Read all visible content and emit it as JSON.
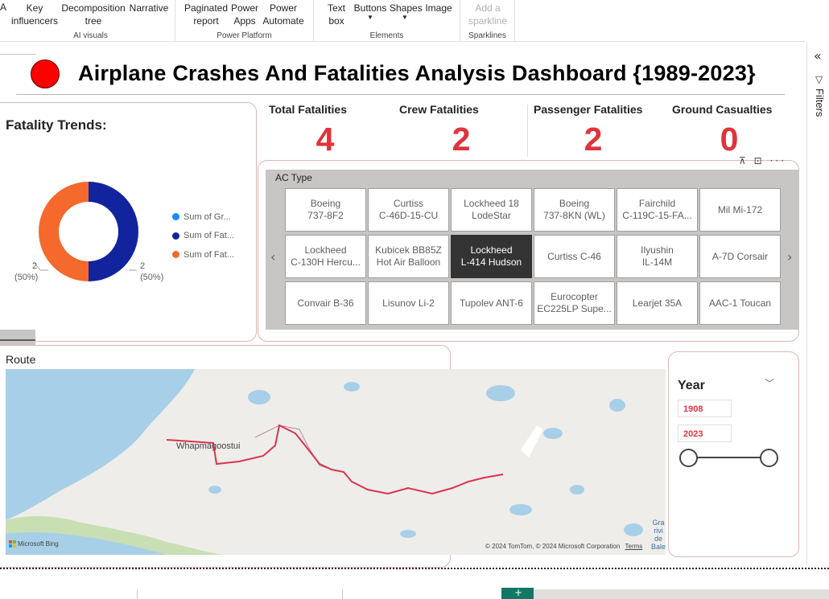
{
  "ribbon": {
    "ai_visuals": {
      "label": "AI visuals",
      "buttons": [
        {
          "line1": "Key",
          "line2": "influencers"
        },
        {
          "line1": "Decomposition",
          "line2": "tree"
        },
        {
          "line1": "Narrative",
          "line2": ""
        }
      ]
    },
    "power_platform": {
      "label": "Power Platform",
      "buttons": [
        {
          "line1": "Paginated",
          "line2": "report"
        },
        {
          "line1": "Power",
          "line2": "Apps"
        },
        {
          "line1": "Power",
          "line2": "Automate"
        }
      ]
    },
    "elements": {
      "label": "Elements",
      "buttons": [
        {
          "line1": "Text",
          "line2": "box"
        },
        {
          "line1": "Buttons",
          "line2": ""
        },
        {
          "line1": "Shapes",
          "line2": ""
        },
        {
          "line1": "Image",
          "line2": ""
        }
      ]
    },
    "sparklines": {
      "label": "Sparklines",
      "buttons": [
        {
          "line1": "Add a",
          "line2": "sparkline"
        }
      ]
    },
    "left_fragment": "A"
  },
  "filters": {
    "label": "Filters",
    "collapse_icon": "double-chevron-left-icon",
    "funnel_icon": "funnel-icon"
  },
  "title": {
    "text": "Airplane Crashes And Fatalities Analysis Dashboard {1989-2023}",
    "dot_color": "#ff0000"
  },
  "trends": {
    "title": "Fatality Trends:",
    "legend": [
      {
        "label": "Sum of Gr...",
        "color": "#118dff"
      },
      {
        "label": "Sum of Fat...",
        "color": "#12239e"
      },
      {
        "label": "Sum of Fat...",
        "color": "#f5692d"
      }
    ],
    "left_label_value": "2",
    "left_label_pct": "(50%)",
    "right_label_value": "2",
    "right_label_pct": "(50%)"
  },
  "chart_data": {
    "type": "pie",
    "title": "Fatality Trends:",
    "categories": [
      "Sum of Gr...",
      "Sum of Fat...",
      "Sum of Fat..."
    ],
    "values": [
      0,
      2,
      2
    ],
    "percentages": [
      0,
      50,
      50
    ],
    "colors": [
      "#118dff",
      "#12239e",
      "#f5692d"
    ],
    "donut": true,
    "legend_position": "right"
  },
  "kpis": {
    "total": {
      "label": "Total Fatalities",
      "value": "4"
    },
    "crew": {
      "label": "Crew Fatalities",
      "value": "2"
    },
    "passenger": {
      "label": "Passenger Fatalities",
      "value": "2"
    },
    "ground": {
      "label": "Ground Casualties",
      "value": "0"
    }
  },
  "ac_type": {
    "header": "AC Type",
    "tiles": [
      {
        "label": "Boeing\n737-8F2",
        "selected": false
      },
      {
        "label": "Curtiss\nC-46D-15-CU",
        "selected": false
      },
      {
        "label": "Lockheed 18\nLodeStar",
        "selected": false
      },
      {
        "label": "Boeing\n737-8KN (WL)",
        "selected": false
      },
      {
        "label": "Fairchild\nC-119C-15-FA...",
        "selected": false
      },
      {
        "label": "Mil Mi-172",
        "selected": false
      },
      {
        "label": "Lockheed\nC-130H Hercu...",
        "selected": false
      },
      {
        "label": "Kubicek BB85Z\nHot Air Balloon",
        "selected": false
      },
      {
        "label": "Lockheed\nL-414 Hudson",
        "selected": true
      },
      {
        "label": "Curtiss C-46",
        "selected": false
      },
      {
        "label": "Ilyushin\nIL-14M",
        "selected": false
      },
      {
        "label": "A-7D Corsair",
        "selected": false
      },
      {
        "label": "Convair B-36",
        "selected": false
      },
      {
        "label": "Lisunov Li-2",
        "selected": false
      },
      {
        "label": "Tupolev ANT-6",
        "selected": false
      },
      {
        "label": "Eurocopter\nEC225LP Supe...",
        "selected": false
      },
      {
        "label": "Learjet 35A",
        "selected": false
      },
      {
        "label": "AAC-1 Toucan",
        "selected": false
      }
    ]
  },
  "map": {
    "title": "Route",
    "place_label": "Whapmagoostui",
    "attribution_brand": "Microsoft Bing",
    "copyright": "© 2024 TomTom, © 2024 Microsoft Corporation",
    "terms": "Terms",
    "right_edge_label": "Gra rivi de Bale",
    "route_color": "#d9344f"
  },
  "year": {
    "title": "Year",
    "start": "1908",
    "end": "2023",
    "range_start_fraction": 0,
    "range_end_fraction": 1
  }
}
